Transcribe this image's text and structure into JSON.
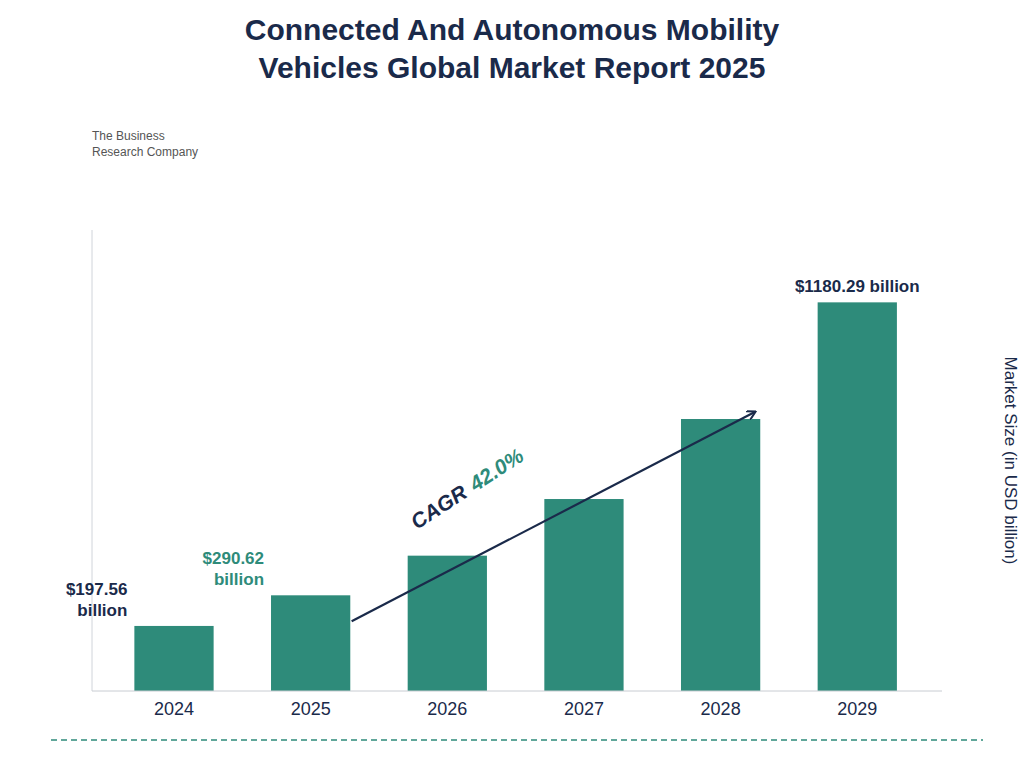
{
  "chart_data": {
    "type": "bar",
    "title": "Connected And Autonomous Mobility\nVehicles Global Market Report 2025",
    "y_label": "Market Size (in USD billion)",
    "categories": [
      "2024",
      "2025",
      "2026",
      "2027",
      "2028",
      "2029"
    ],
    "values": [
      197.56,
      290.62,
      411.0,
      583.0,
      826.0,
      1180.29
    ],
    "color": "#2e8b7a",
    "ylim": [
      0,
      1400
    ],
    "tick_labels": "x",
    "grid": false,
    "annotations": [
      {
        "text": "$197.56\nbillion",
        "at": "2024",
        "color": "#1a2a4a"
      },
      {
        "text": "$290.62\nbillion",
        "at": "2025",
        "color": "#2e8b7a"
      },
      {
        "text": "$1180.29 billion",
        "at": "2029",
        "color": "#1a2a4a"
      }
    ],
    "cagr_label": "CAGR",
    "cagr_value": "42.0%",
    "logo_text": "The Business\nResearch Company"
  }
}
